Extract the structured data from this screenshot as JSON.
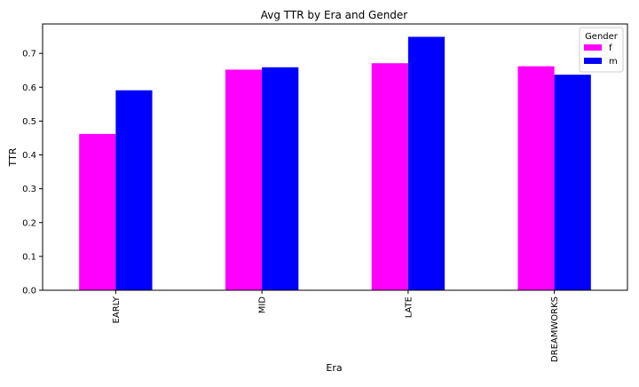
{
  "chart_data": {
    "type": "bar",
    "title": "Avg TTR by Era and Gender",
    "xlabel": "Era",
    "ylabel": "TTR",
    "categories": [
      "EARLY",
      "MID",
      "LATE",
      "DREAMWORKS"
    ],
    "series": [
      {
        "name": "f",
        "color": "#ff00ff",
        "values": [
          0.462,
          0.652,
          0.671,
          0.662
        ]
      },
      {
        "name": "m",
        "color": "#0000ff",
        "values": [
          0.591,
          0.659,
          0.749,
          0.637
        ]
      }
    ],
    "ylim": [
      0,
      0.787
    ],
    "yticks": [
      "0.0",
      "0.1",
      "0.2",
      "0.3",
      "0.4",
      "0.5",
      "0.6",
      "0.7"
    ],
    "legend": {
      "title": "Gender",
      "placement": "top-right"
    },
    "grid": false
  }
}
